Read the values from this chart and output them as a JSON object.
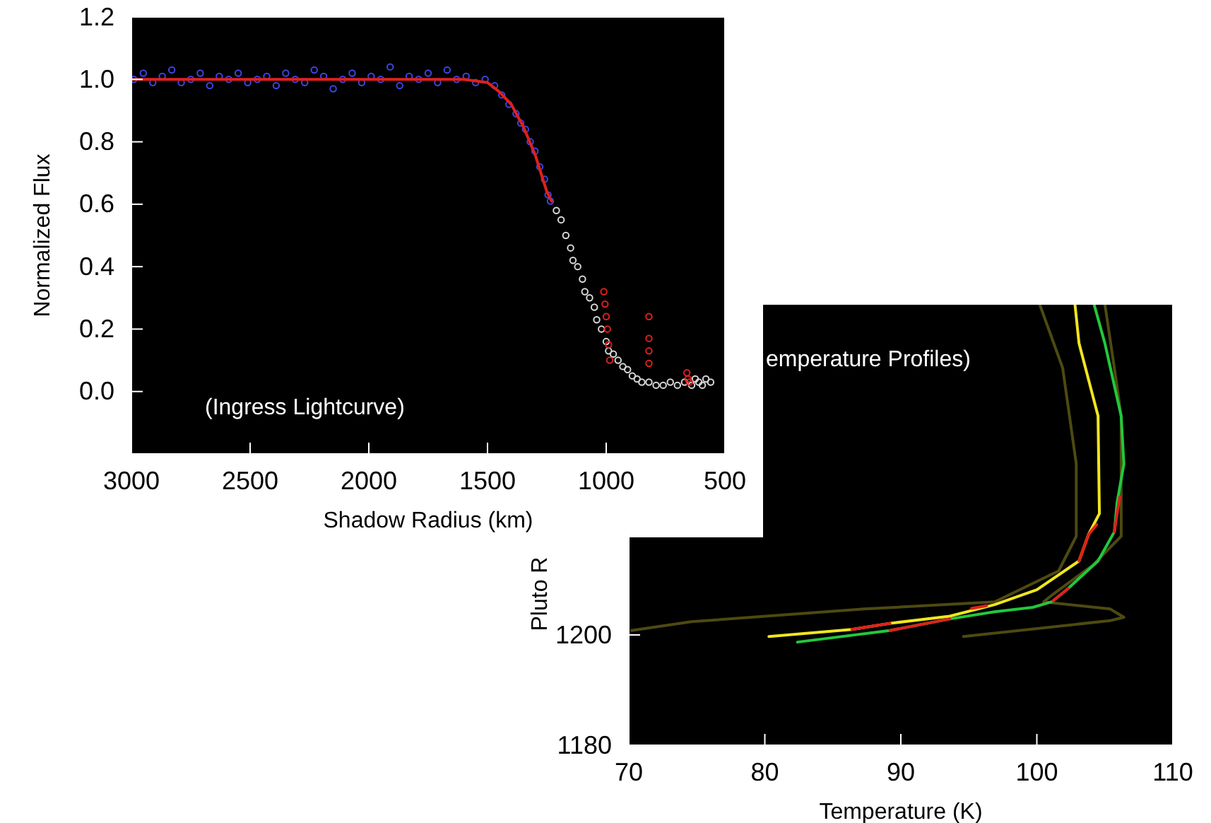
{
  "chart_data": [
    {
      "type": "scatter",
      "xlabel": "Shadow Radius (km)",
      "ylabel": "Normalized Flux",
      "annotations": [
        "(Ingress Lightcurve)"
      ],
      "marker": "circle",
      "xlim": [
        3000,
        500
      ],
      "xticks": [
        3000,
        2500,
        2000,
        1500,
        1000,
        500
      ],
      "ylim": [
        -0.2,
        1.2
      ],
      "yticks": [
        {
          "value": 0,
          "label": "0.0"
        },
        0.2,
        0.4,
        0.6,
        0.8,
        {
          "value": 1,
          "label": "1.0"
        },
        1.2
      ],
      "series": [
        {
          "color": "#3c46e6",
          "x": [
            2990,
            2950,
            2910,
            2870,
            2830,
            2790,
            2750,
            2710,
            2670,
            2630,
            2590,
            2550,
            2510,
            2470,
            2430,
            2390,
            2350,
            2310,
            2270,
            2230,
            2190,
            2150,
            2110,
            2070,
            2030,
            1990,
            1950,
            1910,
            1870,
            1830,
            1790,
            1750,
            1710,
            1670,
            1630,
            1590,
            1550,
            1510,
            1470,
            1440,
            1410,
            1380,
            1360,
            1340,
            1320,
            1300,
            1280,
            1260,
            1245,
            1235
          ],
          "values": [
            1.0,
            1.02,
            0.99,
            1.01,
            1.03,
            0.99,
            1.0,
            1.02,
            0.98,
            1.01,
            1.0,
            1.02,
            0.99,
            1.0,
            1.01,
            0.98,
            1.02,
            1.0,
            0.99,
            1.03,
            1.01,
            0.97,
            1.0,
            1.02,
            0.99,
            1.01,
            1.0,
            1.04,
            0.98,
            1.01,
            1.0,
            1.02,
            0.99,
            1.03,
            1.0,
            1.01,
            0.99,
            1.0,
            0.98,
            0.95,
            0.92,
            0.89,
            0.86,
            0.84,
            0.8,
            0.77,
            0.72,
            0.68,
            0.63,
            0.61
          ]
        },
        {
          "color": "#d8d8d8",
          "x": [
            1210,
            1190,
            1170,
            1150,
            1140,
            1120,
            1100,
            1090,
            1070,
            1050,
            1040,
            1020,
            1000,
            990,
            970,
            950,
            930,
            910,
            890,
            870,
            850,
            820,
            790,
            760,
            730,
            700,
            670,
            640,
            625,
            610,
            595,
            580,
            560
          ],
          "values": [
            0.58,
            0.55,
            0.5,
            0.46,
            0.42,
            0.4,
            0.36,
            0.32,
            0.3,
            0.27,
            0.23,
            0.2,
            0.16,
            0.13,
            0.12,
            0.1,
            0.08,
            0.07,
            0.05,
            0.04,
            0.03,
            0.03,
            0.02,
            0.02,
            0.03,
            0.02,
            0.03,
            0.02,
            0.04,
            0.03,
            0.02,
            0.04,
            0.03
          ]
        },
        {
          "color": "#e0201c",
          "x": [
            1010,
            1005,
            1000,
            995,
            990,
            985,
            820,
            820,
            820,
            820,
            660,
            655,
            650
          ],
          "values": [
            0.32,
            0.28,
            0.24,
            0.2,
            0.15,
            0.1,
            0.24,
            0.17,
            0.13,
            0.09,
            0.06,
            0.04,
            0.03
          ]
        },
        {
          "type": "line",
          "color": "#e0201c",
          "marker": "none",
          "x": [
            3000,
            1600,
            1500,
            1450,
            1400,
            1350,
            1300,
            1250,
            1230
          ],
          "values": [
            1.0,
            1.0,
            0.99,
            0.96,
            0.92,
            0.85,
            0.76,
            0.64,
            0.61
          ]
        }
      ]
    },
    {
      "type": "line",
      "xlabel": "Temperature (K)",
      "ylabel": "Pluto R",
      "annotations": [
        "emperature Profiles)"
      ],
      "marker": "none",
      "line_style": "solid",
      "xlim": [
        70,
        110
      ],
      "xticks": [
        70,
        80,
        90,
        100,
        110
      ],
      "ylim": [
        1180,
        1260
      ],
      "yticks": [
        1180,
        1200
      ],
      "series": [
        {
          "color": "#4d4a12",
          "x": [
            100.2,
            101.9,
            102.9,
            102.9,
            101.6,
            96.9,
            87.3,
            74.6,
            70.2
          ],
          "values": [
            1260,
            1248.4,
            1231,
            1217.9,
            1211.6,
            1206,
            1204.7,
            1202.4,
            1200.8
          ]
        },
        {
          "color": "#4d4a12",
          "x": [
            105,
            105.7,
            106.2,
            106.2,
            104.1,
            101.2,
            100.5,
            105.4,
            106.4,
            105.4,
            94.6
          ],
          "values": [
            1260,
            1248.4,
            1239.7,
            1217.9,
            1212.6,
            1207.4,
            1206,
            1204.7,
            1203.2,
            1202.6,
            1199.7
          ]
        },
        {
          "color": "#f0e61e",
          "x": [
            102.8,
            103.1,
            104.5,
            104.6,
            103.8,
            103.1,
            100,
            96.9,
            93.6,
            89.2,
            86.4,
            80.3
          ],
          "values": [
            1260,
            1252.9,
            1239.7,
            1222,
            1218.2,
            1213.4,
            1208.2,
            1205.5,
            1203.4,
            1202.1,
            1201,
            1199.7
          ]
        },
        {
          "color": "#22c83c",
          "x": [
            104.2,
            105,
            106.2,
            106.4,
            105.9,
            105.7,
            104.5,
            102.2,
            101.1,
            99.7,
            96.9,
            93.6,
            89.2,
            82.4
          ],
          "values": [
            1260,
            1252.9,
            1239.7,
            1231,
            1224,
            1218.7,
            1213.4,
            1208.2,
            1206,
            1205,
            1204.2,
            1202.9,
            1200.8,
            1198.7
          ]
        },
        {
          "color": "#e0201c",
          "x": [
            104.4,
            103.8,
            103.1,
            null,
            96.3,
            95.2,
            null,
            89.2,
            86.4,
            null,
            106.1,
            105.9,
            105.7,
            null,
            102.3,
            101.2,
            null,
            93.6,
            89.2
          ],
          "values": [
            1220,
            1218.2,
            1213.4,
            null,
            1205.3,
            1204.8,
            null,
            1202.1,
            1201,
            null,
            1225,
            1222,
            1218.7,
            null,
            1208.4,
            1206.2,
            null,
            1202.9,
            1200.8
          ]
        }
      ]
    }
  ]
}
